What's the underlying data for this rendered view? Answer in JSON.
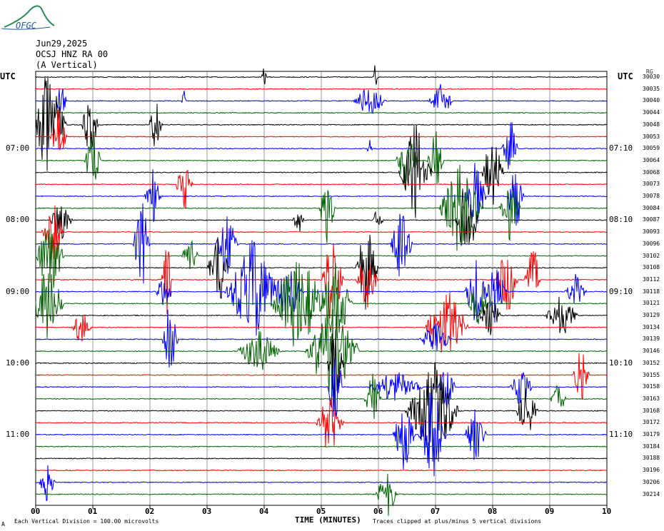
{
  "logo": {
    "text": "OFGC"
  },
  "header": {
    "date": "Jun29,2025",
    "station": "OCSJ HNZ RA 00",
    "component": "(A Vertical)"
  },
  "axis": {
    "left_label": "UTC",
    "right_label": "UTC",
    "xlabel": "TIME (MINUTES)"
  },
  "corner_label": "RG",
  "footer": {
    "left_note": "Each Vertical Division =  100.00 microvolts",
    "right_note": "Traces clipped at plus/minus 5 vertical divisions",
    "mark": "A"
  },
  "colors": {
    "black": "#000000",
    "red": "#ff0000",
    "blue": "#0000ff",
    "green": "#006400",
    "grid": "#808080"
  },
  "chart_data": {
    "type": "line",
    "title": "",
    "xlabel": "TIME (MINUTES)",
    "ylabel": "UTC",
    "xlim": [
      0,
      10
    ],
    "x_ticks": [
      "00",
      "01",
      "02",
      "03",
      "04",
      "05",
      "06",
      "07",
      "08",
      "09",
      "10"
    ],
    "left_time_labels": [
      "07:00",
      "08:00",
      "09:00",
      "10:00",
      "11:00"
    ],
    "right_time_labels": [
      "07:10",
      "08:10",
      "09:10",
      "10:10",
      "11:10"
    ],
    "trace_counts": [
      "30030",
      "30035",
      "30040",
      "30044",
      "30048",
      "30053",
      "30059",
      "30064",
      "30068",
      "30073",
      "30078",
      "30084",
      "30087",
      "30093",
      "30096",
      "30102",
      "30108",
      "30112",
      "30118",
      "30121",
      "30129",
      "30134",
      "30139",
      "30146",
      "30152",
      "30155",
      "30158",
      "30163",
      "30168",
      "30172",
      "30179",
      "30184",
      "30188",
      "30196",
      "30206",
      "30214"
    ],
    "trace_color_cycle": [
      "black",
      "red",
      "blue",
      "green"
    ],
    "grid": true,
    "events": [
      {
        "trace": 0,
        "minute": 4.0,
        "amp": 2,
        "width": 0.05
      },
      {
        "trace": 0,
        "minute": 5.95,
        "amp": 3,
        "width": 0.04
      },
      {
        "trace": 2,
        "minute": 0.45,
        "amp": 4,
        "width": 0.1
      },
      {
        "trace": 2,
        "minute": 2.6,
        "amp": 2,
        "width": 0.05
      },
      {
        "trace": 2,
        "minute": 5.85,
        "amp": 3,
        "width": 0.3
      },
      {
        "trace": 2,
        "minute": 7.1,
        "amp": 3,
        "width": 0.25
      },
      {
        "trace": 4,
        "minute": 0.2,
        "amp": 9,
        "width": 0.35
      },
      {
        "trace": 4,
        "minute": 0.95,
        "amp": 6,
        "width": 0.15
      },
      {
        "trace": 4,
        "minute": 2.1,
        "amp": 5,
        "width": 0.12
      },
      {
        "trace": 5,
        "minute": 0.4,
        "amp": 5,
        "width": 0.15
      },
      {
        "trace": 6,
        "minute": 8.3,
        "amp": 6,
        "width": 0.15
      },
      {
        "trace": 6,
        "minute": 5.85,
        "amp": 2,
        "width": 0.05
      },
      {
        "trace": 7,
        "minute": 1.0,
        "amp": 6,
        "width": 0.15
      },
      {
        "trace": 7,
        "minute": 6.5,
        "amp": 6,
        "width": 0.2
      },
      {
        "trace": 7,
        "minute": 7.0,
        "amp": 6,
        "width": 0.15
      },
      {
        "trace": 8,
        "minute": 6.65,
        "amp": 9,
        "width": 0.3
      },
      {
        "trace": 8,
        "minute": 8.0,
        "amp": 7,
        "width": 0.2
      },
      {
        "trace": 9,
        "minute": 2.6,
        "amp": 5,
        "width": 0.15
      },
      {
        "trace": 10,
        "minute": 2.05,
        "amp": 5,
        "width": 0.15
      },
      {
        "trace": 10,
        "minute": 7.7,
        "amp": 6,
        "width": 0.2
      },
      {
        "trace": 10,
        "minute": 8.4,
        "amp": 7,
        "width": 0.15
      },
      {
        "trace": 11,
        "minute": 5.1,
        "amp": 6,
        "width": 0.15
      },
      {
        "trace": 11,
        "minute": 7.45,
        "amp": 9,
        "width": 0.4
      },
      {
        "trace": 11,
        "minute": 8.3,
        "amp": 6,
        "width": 0.2
      },
      {
        "trace": 12,
        "minute": 0.45,
        "amp": 4,
        "width": 0.2
      },
      {
        "trace": 12,
        "minute": 4.6,
        "amp": 3,
        "width": 0.1
      },
      {
        "trace": 12,
        "minute": 6.0,
        "amp": 3,
        "width": 0.1
      },
      {
        "trace": 12,
        "minute": 7.55,
        "amp": 9,
        "width": 0.2
      },
      {
        "trace": 13,
        "minute": 0.3,
        "amp": 6,
        "width": 0.2
      },
      {
        "trace": 14,
        "minute": 1.85,
        "amp": 9,
        "width": 0.15
      },
      {
        "trace": 14,
        "minute": 3.35,
        "amp": 6,
        "width": 0.2
      },
      {
        "trace": 14,
        "minute": 6.4,
        "amp": 7,
        "width": 0.2
      },
      {
        "trace": 15,
        "minute": 0.25,
        "amp": 8,
        "width": 0.25
      },
      {
        "trace": 15,
        "minute": 2.7,
        "amp": 4,
        "width": 0.15
      },
      {
        "trace": 16,
        "minute": 3.2,
        "amp": 7,
        "width": 0.2
      },
      {
        "trace": 16,
        "minute": 5.8,
        "amp": 9,
        "width": 0.2
      },
      {
        "trace": 17,
        "minute": 2.3,
        "amp": 7,
        "width": 0.1
      },
      {
        "trace": 17,
        "minute": 5.2,
        "amp": 9,
        "width": 0.2
      },
      {
        "trace": 17,
        "minute": 5.8,
        "amp": 5,
        "width": 0.2
      },
      {
        "trace": 17,
        "minute": 8.25,
        "amp": 7,
        "width": 0.2
      },
      {
        "trace": 17,
        "minute": 8.7,
        "amp": 7,
        "width": 0.15
      },
      {
        "trace": 18,
        "minute": 2.25,
        "amp": 4,
        "width": 0.15
      },
      {
        "trace": 18,
        "minute": 3.8,
        "amp": 9,
        "width": 0.5
      },
      {
        "trace": 18,
        "minute": 4.4,
        "amp": 6,
        "width": 0.3
      },
      {
        "trace": 18,
        "minute": 7.7,
        "amp": 6,
        "width": 0.2
      },
      {
        "trace": 18,
        "minute": 8.05,
        "amp": 6,
        "width": 0.2
      },
      {
        "trace": 18,
        "minute": 9.45,
        "amp": 3,
        "width": 0.2
      },
      {
        "trace": 19,
        "minute": 0.2,
        "amp": 8,
        "width": 0.3
      },
      {
        "trace": 19,
        "minute": 4.6,
        "amp": 9,
        "width": 0.5
      },
      {
        "trace": 19,
        "minute": 5.25,
        "amp": 8,
        "width": 0.3
      },
      {
        "trace": 19,
        "minute": 7.75,
        "amp": 4,
        "width": 0.2
      },
      {
        "trace": 20,
        "minute": 7.95,
        "amp": 4,
        "width": 0.2
      },
      {
        "trace": 20,
        "minute": 9.2,
        "amp": 4,
        "width": 0.3
      },
      {
        "trace": 21,
        "minute": 0.8,
        "amp": 3,
        "width": 0.2
      },
      {
        "trace": 21,
        "minute": 7.2,
        "amp": 7,
        "width": 0.4
      },
      {
        "trace": 22,
        "minute": 2.35,
        "amp": 7,
        "width": 0.15
      },
      {
        "trace": 22,
        "minute": 7.0,
        "amp": 3,
        "width": 0.3
      },
      {
        "trace": 23,
        "minute": 5.2,
        "amp": 9,
        "width": 0.5
      },
      {
        "trace": 23,
        "minute": 3.9,
        "amp": 4,
        "width": 0.4
      },
      {
        "trace": 24,
        "minute": 5.25,
        "amp": 9,
        "width": 0.15
      },
      {
        "trace": 25,
        "minute": 9.55,
        "amp": 5,
        "width": 0.15
      },
      {
        "trace": 26,
        "minute": 5.25,
        "amp": 7,
        "width": 0.15
      },
      {
        "trace": 26,
        "minute": 6.3,
        "amp": 3,
        "width": 0.5
      },
      {
        "trace": 26,
        "minute": 7.2,
        "amp": 5,
        "width": 0.15
      },
      {
        "trace": 26,
        "minute": 8.5,
        "amp": 4,
        "width": 0.2
      },
      {
        "trace": 27,
        "minute": 5.9,
        "amp": 5,
        "width": 0.15
      },
      {
        "trace": 27,
        "minute": 9.15,
        "amp": 3,
        "width": 0.15
      },
      {
        "trace": 28,
        "minute": 6.95,
        "amp": 9,
        "width": 0.5
      },
      {
        "trace": 28,
        "minute": 8.6,
        "amp": 5,
        "width": 0.2
      },
      {
        "trace": 29,
        "minute": 5.15,
        "amp": 6,
        "width": 0.25
      },
      {
        "trace": 30,
        "minute": 6.45,
        "amp": 7,
        "width": 0.2
      },
      {
        "trace": 30,
        "minute": 6.95,
        "amp": 9,
        "width": 0.25
      },
      {
        "trace": 30,
        "minute": 7.7,
        "amp": 5,
        "width": 0.2
      },
      {
        "trace": 34,
        "minute": 0.2,
        "amp": 4,
        "width": 0.15
      },
      {
        "trace": 35,
        "minute": 6.15,
        "amp": 5,
        "width": 0.2
      }
    ]
  }
}
